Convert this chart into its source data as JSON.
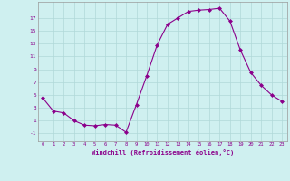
{
  "x": [
    0,
    1,
    2,
    3,
    4,
    5,
    6,
    7,
    8,
    9,
    10,
    11,
    12,
    13,
    14,
    15,
    16,
    17,
    18,
    19,
    20,
    21,
    22,
    23
  ],
  "y": [
    4.5,
    2.5,
    2.2,
    1.0,
    0.3,
    0.2,
    0.4,
    0.3,
    -0.8,
    3.5,
    8.0,
    12.8,
    16.0,
    17.0,
    18.0,
    18.2,
    18.3,
    18.5,
    16.5,
    12.0,
    8.5,
    6.5,
    5.0,
    4.0
  ],
  "line_color": "#8B008B",
  "marker": "D",
  "marker_size": 2.0,
  "bg_color": "#cff0f0",
  "grid_color": "#b0d8d8",
  "xlabel": "Windchill (Refroidissement éolien,°C)",
  "xlabel_color": "#8B008B",
  "ytick_labels": [
    "-1",
    "1",
    "3",
    "5",
    "7",
    "9",
    "11",
    "13",
    "15",
    "17"
  ],
  "ytick_values": [
    -1,
    1,
    3,
    5,
    7,
    9,
    11,
    13,
    15,
    17
  ],
  "ylim": [
    -2.2,
    19.5
  ],
  "xlim": [
    -0.5,
    23.5
  ],
  "xtick_values": [
    0,
    1,
    2,
    3,
    4,
    5,
    6,
    7,
    8,
    9,
    10,
    11,
    12,
    13,
    14,
    15,
    16,
    17,
    18,
    19,
    20,
    21,
    22,
    23
  ]
}
